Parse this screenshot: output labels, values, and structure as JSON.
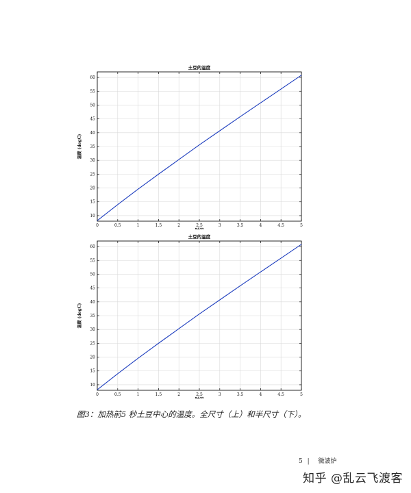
{
  "chart_data": [
    {
      "type": "line",
      "title": "土豆的温度",
      "xlabel": "时间",
      "ylabel": "温度 (degC)",
      "xlim": [
        0,
        5
      ],
      "ylim": [
        8,
        62
      ],
      "xticks": [
        "0",
        "0.5",
        "1",
        "1.5",
        "2",
        "2.5",
        "3",
        "3.5",
        "4",
        "4.5",
        "5"
      ],
      "xtick_values": [
        0,
        0.5,
        1,
        1.5,
        2,
        2.5,
        3,
        3.5,
        4,
        4.5,
        5
      ],
      "yticks": [
        "10",
        "15",
        "20",
        "25",
        "30",
        "35",
        "40",
        "45",
        "50",
        "55",
        "60"
      ],
      "ytick_values": [
        10,
        15,
        20,
        25,
        30,
        35,
        40,
        45,
        50,
        55,
        60
      ],
      "grid": true,
      "line_color": "#1f3fbf",
      "series": [
        {
          "x": [
            0,
            0.5,
            1,
            1.5,
            2,
            2.5,
            3,
            3.5,
            4,
            4.5,
            5
          ],
          "y": [
            8.2,
            14.0,
            19.6,
            25.0,
            30.3,
            35.6,
            40.7,
            45.8,
            50.8,
            55.8,
            60.8
          ]
        }
      ]
    },
    {
      "type": "line",
      "title": "土豆的温度",
      "xlabel": "时间",
      "ylabel": "温度 (degC)",
      "xlim": [
        0,
        5
      ],
      "ylim": [
        8,
        62
      ],
      "xticks": [
        "0",
        "0.5",
        "1",
        "1.5",
        "2",
        "2.5",
        "3",
        "3.5",
        "4",
        "4.5",
        "5"
      ],
      "xtick_values": [
        0,
        0.5,
        1,
        1.5,
        2,
        2.5,
        3,
        3.5,
        4,
        4.5,
        5
      ],
      "yticks": [
        "10",
        "15",
        "20",
        "25",
        "30",
        "35",
        "40",
        "45",
        "50",
        "55",
        "60"
      ],
      "ytick_values": [
        10,
        15,
        20,
        25,
        30,
        35,
        40,
        45,
        50,
        55,
        60
      ],
      "grid": true,
      "line_color": "#1f3fbf",
      "series": [
        {
          "x": [
            0,
            0.5,
            1,
            1.5,
            2,
            2.5,
            3,
            3.5,
            4,
            4.5,
            5
          ],
          "y": [
            8.2,
            14.0,
            19.6,
            25.0,
            30.3,
            35.6,
            40.7,
            45.8,
            50.8,
            55.8,
            60.8
          ]
        }
      ]
    }
  ],
  "caption": "图3：加热前5 秒土豆中心的温度。全尺寸（上）和半尺寸（下）。",
  "footer": {
    "page_number": "5",
    "separator": "|",
    "section": "微波炉"
  },
  "watermark": "知乎 @乱云飞渡客"
}
